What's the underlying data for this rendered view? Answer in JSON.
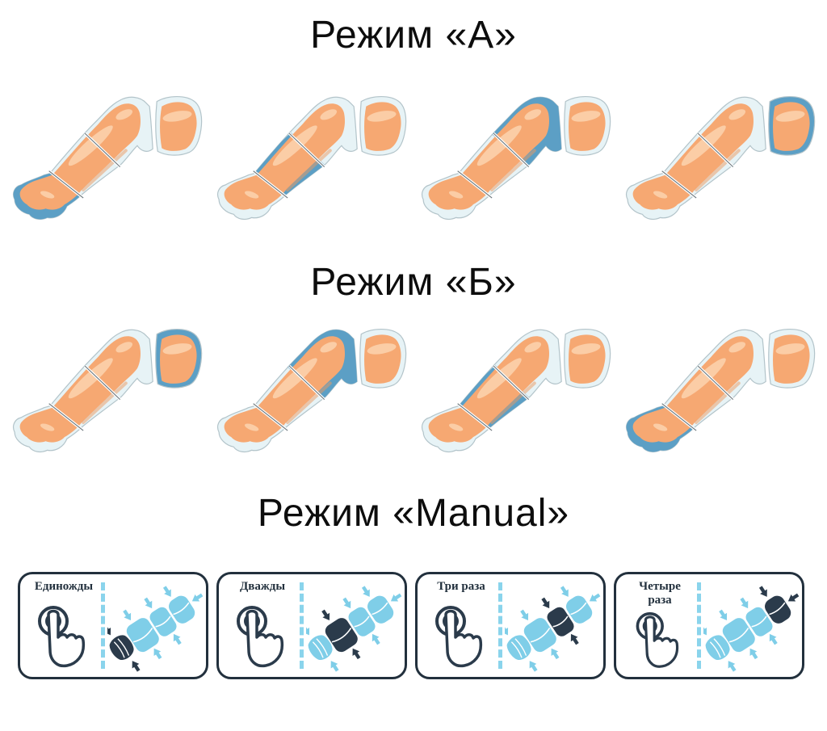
{
  "sections": [
    {
      "id": "mode-a",
      "title": "Режим «А»",
      "type": "leg-sequence",
      "legs": [
        {
          "highlight": "foot"
        },
        {
          "highlight": "calf"
        },
        {
          "highlight": "knee"
        },
        {
          "highlight": "thigh"
        }
      ]
    },
    {
      "id": "mode-b",
      "title": "Режим «Б»",
      "type": "leg-sequence",
      "legs": [
        {
          "highlight": "thigh"
        },
        {
          "highlight": "knee"
        },
        {
          "highlight": "calf"
        },
        {
          "highlight": "foot"
        }
      ]
    },
    {
      "id": "manual",
      "title": "Режим «Manual»",
      "type": "press-panels",
      "panels": [
        {
          "label": "Единожды",
          "presses": 1,
          "dark_segment": 1
        },
        {
          "label": "Дважды",
          "presses": 2,
          "dark_segment": 2
        },
        {
          "label": "Три раза",
          "presses": 3,
          "dark_segment": 3
        },
        {
          "label": "Четыре\nраза",
          "presses": 4,
          "dark_segment": 4
        }
      ]
    }
  ],
  "colors": {
    "highlight_blue": "#5C9FC5",
    "cuff_light": "#E7F3F6",
    "cuff_stroke": "#b3c4ca",
    "skin": "#F6A872",
    "skin_light": "#FBCDA6",
    "skin_shade": "#EC9A60",
    "manual_blue": "#7fcee8",
    "manual_dark": "#2b3b4b",
    "panel_border": "#22303d",
    "title_color": "#0d0d0d"
  },
  "icons": [
    {
      "name": "press-button-icon",
      "meaning": "finger tapping a round button"
    },
    {
      "name": "compression-cuff-graphic",
      "meaning": "inflatable limb cuff with chambers"
    },
    {
      "name": "inward-arrow-icon",
      "meaning": "compression direction arrows"
    },
    {
      "name": "leg-graphic",
      "meaning": "leg in pneumo-massage boot, one chamber highlighted"
    }
  ]
}
